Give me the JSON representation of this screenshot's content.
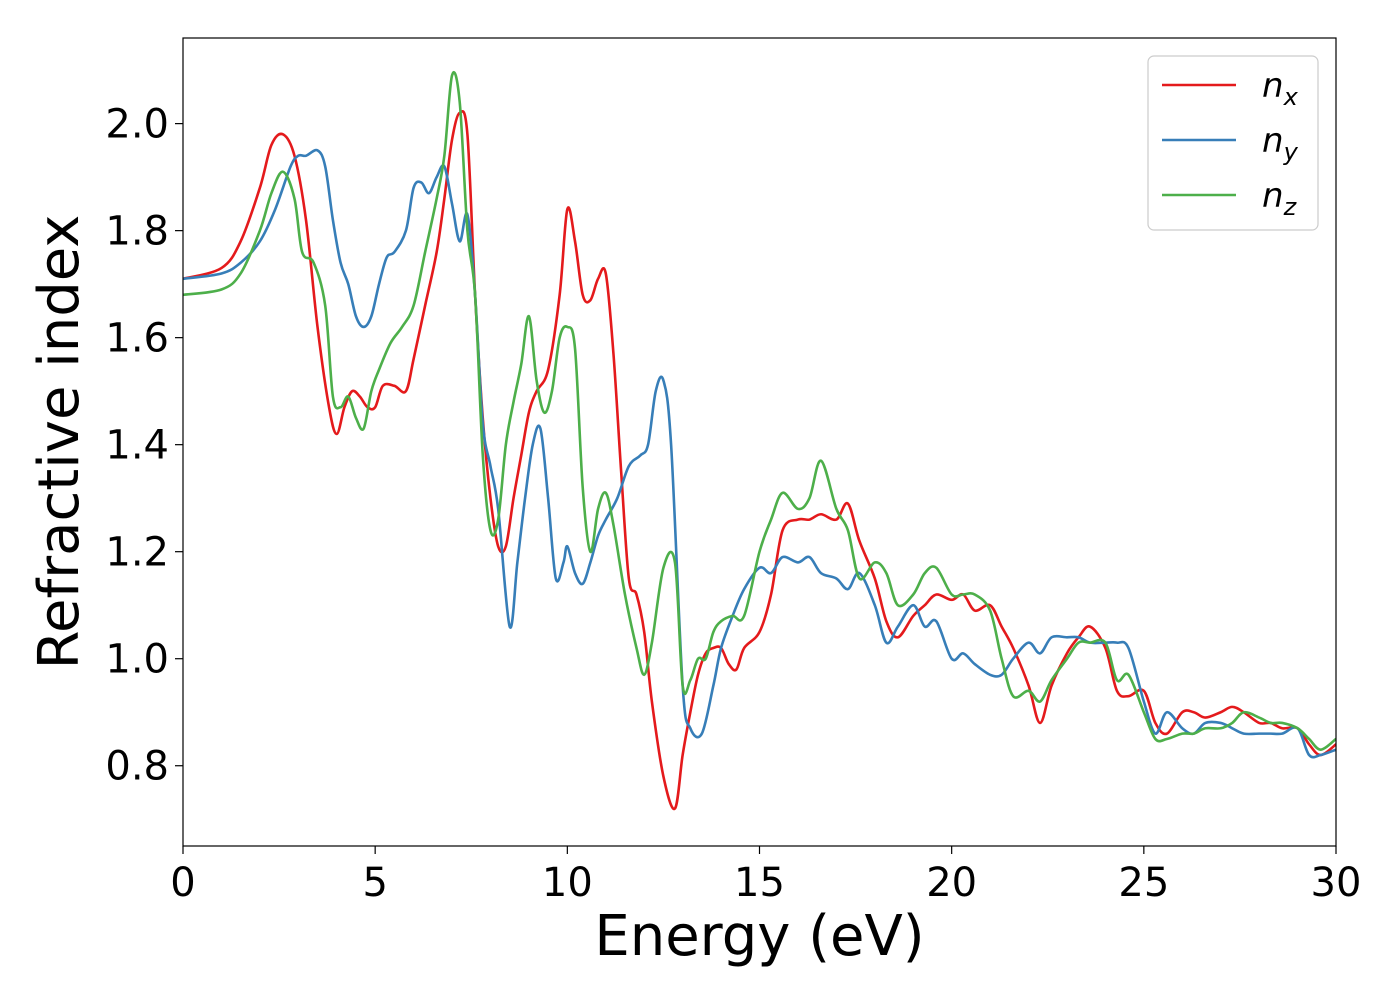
{
  "chart_data": {
    "type": "line",
    "title": "",
    "xlabel": "Energy (eV)",
    "ylabel": "Refractive index",
    "xlim": [
      0,
      30
    ],
    "ylim": [
      0.65,
      2.16
    ],
    "xticks": [
      0,
      5,
      10,
      15,
      20,
      25,
      30
    ],
    "xtick_labels": [
      "0",
      "5",
      "10",
      "15",
      "20",
      "25",
      "30"
    ],
    "yticks": [
      0.8,
      1.0,
      1.2,
      1.4,
      1.6,
      1.8,
      2.0
    ],
    "ytick_labels": [
      "0.8",
      "1.0",
      "1.2",
      "1.4",
      "1.6",
      "1.8",
      "2.0"
    ],
    "grid": false,
    "legend_position": "top-right",
    "series": [
      {
        "name": "n",
        "subscript": "x",
        "color": "#e41a1c",
        "x": [
          0,
          1,
          1.5,
          2,
          2.3,
          2.6,
          2.9,
          3.2,
          3.5,
          3.8,
          4.0,
          4.2,
          4.4,
          4.6,
          4.8,
          5.0,
          5.2,
          5.5,
          5.8,
          6.0,
          6.3,
          6.6,
          6.8,
          7.0,
          7.2,
          7.4,
          7.6,
          7.8,
          8.0,
          8.2,
          8.4,
          8.6,
          8.8,
          9.0,
          9.2,
          9.5,
          9.8,
          10.0,
          10.2,
          10.4,
          10.6,
          10.8,
          11.0,
          11.2,
          11.4,
          11.6,
          11.8,
          12.0,
          12.2,
          12.5,
          12.8,
          13.0,
          13.2,
          13.4,
          13.6,
          13.8,
          14.0,
          14.2,
          14.4,
          14.6,
          15.0,
          15.3,
          15.6,
          16.0,
          16.3,
          16.6,
          17.0,
          17.3,
          17.6,
          18.0,
          18.3,
          18.6,
          19.0,
          19.3,
          19.6,
          20.0,
          20.3,
          20.6,
          21.0,
          21.3,
          21.6,
          22.0,
          22.3,
          22.6,
          23.0,
          23.3,
          23.6,
          24.0,
          24.3,
          24.6,
          25.0,
          25.3,
          25.6,
          26.0,
          26.3,
          26.6,
          27.0,
          27.3,
          27.6,
          28.0,
          28.3,
          28.6,
          29.0,
          29.3,
          29.6,
          30.0
        ],
        "y": [
          1.71,
          1.73,
          1.78,
          1.88,
          1.96,
          1.98,
          1.94,
          1.82,
          1.62,
          1.47,
          1.42,
          1.47,
          1.5,
          1.49,
          1.47,
          1.47,
          1.51,
          1.51,
          1.5,
          1.56,
          1.66,
          1.76,
          1.86,
          1.97,
          2.02,
          1.98,
          1.68,
          1.45,
          1.3,
          1.21,
          1.21,
          1.3,
          1.38,
          1.46,
          1.5,
          1.54,
          1.68,
          1.84,
          1.78,
          1.68,
          1.67,
          1.71,
          1.72,
          1.57,
          1.35,
          1.15,
          1.12,
          1.05,
          0.92,
          0.78,
          0.72,
          0.82,
          0.9,
          0.97,
          1.01,
          1.02,
          1.02,
          0.99,
          0.98,
          1.02,
          1.05,
          1.12,
          1.24,
          1.26,
          1.26,
          1.27,
          1.26,
          1.29,
          1.22,
          1.15,
          1.07,
          1.04,
          1.08,
          1.1,
          1.12,
          1.11,
          1.12,
          1.09,
          1.1,
          1.06,
          1.02,
          0.95,
          0.88,
          0.95,
          1.01,
          1.04,
          1.06,
          1.02,
          0.94,
          0.93,
          0.94,
          0.88,
          0.86,
          0.9,
          0.9,
          0.89,
          0.9,
          0.91,
          0.9,
          0.88,
          0.88,
          0.87,
          0.87,
          0.84,
          0.82,
          0.84
        ]
      },
      {
        "name": "n",
        "subscript": "y",
        "color": "#377eb8",
        "x": [
          0,
          1,
          1.5,
          2,
          2.4,
          2.8,
          3.0,
          3.2,
          3.5,
          3.7,
          3.9,
          4.1,
          4.3,
          4.5,
          4.7,
          4.9,
          5.1,
          5.3,
          5.5,
          5.8,
          6.0,
          6.2,
          6.4,
          6.6,
          6.8,
          7.0,
          7.2,
          7.4,
          7.6,
          7.8,
          8.0,
          8.2,
          8.5,
          8.7,
          8.9,
          9.1,
          9.3,
          9.5,
          9.7,
          9.9,
          10.0,
          10.2,
          10.4,
          10.6,
          10.8,
          11.0,
          11.3,
          11.6,
          11.9,
          12.1,
          12.3,
          12.5,
          12.7,
          13.0,
          13.2,
          13.5,
          13.8,
          14.0,
          14.3,
          14.6,
          15.0,
          15.3,
          15.6,
          16.0,
          16.3,
          16.6,
          17.0,
          17.3,
          17.6,
          18.0,
          18.3,
          18.6,
          19.0,
          19.3,
          19.6,
          20.0,
          20.3,
          20.6,
          21.0,
          21.3,
          21.6,
          22.0,
          22.3,
          22.6,
          23.0,
          23.3,
          23.6,
          24.0,
          24.3,
          24.6,
          25.0,
          25.3,
          25.6,
          26.0,
          26.3,
          26.6,
          27.0,
          27.3,
          27.6,
          28.0,
          28.3,
          28.6,
          29.0,
          29.3,
          29.6,
          30.0
        ],
        "y": [
          1.71,
          1.72,
          1.74,
          1.78,
          1.84,
          1.92,
          1.94,
          1.94,
          1.95,
          1.92,
          1.82,
          1.74,
          1.7,
          1.64,
          1.62,
          1.64,
          1.7,
          1.75,
          1.76,
          1.8,
          1.88,
          1.89,
          1.87,
          1.9,
          1.92,
          1.85,
          1.78,
          1.83,
          1.68,
          1.44,
          1.36,
          1.28,
          1.06,
          1.18,
          1.3,
          1.4,
          1.43,
          1.3,
          1.15,
          1.18,
          1.21,
          1.16,
          1.14,
          1.18,
          1.23,
          1.26,
          1.3,
          1.36,
          1.38,
          1.4,
          1.5,
          1.52,
          1.4,
          0.95,
          0.87,
          0.86,
          0.95,
          1.02,
          1.08,
          1.13,
          1.17,
          1.16,
          1.19,
          1.18,
          1.19,
          1.16,
          1.15,
          1.13,
          1.16,
          1.1,
          1.03,
          1.06,
          1.1,
          1.06,
          1.07,
          1.0,
          1.01,
          0.99,
          0.97,
          0.97,
          1.0,
          1.03,
          1.01,
          1.04,
          1.04,
          1.04,
          1.03,
          1.03,
          1.03,
          1.02,
          0.92,
          0.86,
          0.9,
          0.87,
          0.86,
          0.88,
          0.88,
          0.87,
          0.86,
          0.86,
          0.86,
          0.86,
          0.87,
          0.82,
          0.82,
          0.83
        ]
      },
      {
        "name": "n",
        "subscript": "z",
        "color": "#4daf4a",
        "x": [
          0,
          1,
          1.5,
          2,
          2.3,
          2.6,
          2.9,
          3.1,
          3.4,
          3.7,
          3.9,
          4.1,
          4.3,
          4.5,
          4.7,
          4.9,
          5.1,
          5.4,
          5.7,
          6.0,
          6.3,
          6.6,
          6.8,
          7.0,
          7.2,
          7.4,
          7.6,
          7.8,
          8.0,
          8.2,
          8.4,
          8.6,
          8.8,
          9.0,
          9.2,
          9.4,
          9.6,
          9.8,
          10.0,
          10.2,
          10.4,
          10.6,
          10.8,
          11.0,
          11.2,
          11.5,
          11.8,
          12.0,
          12.2,
          12.5,
          12.8,
          13.0,
          13.2,
          13.4,
          13.6,
          13.8,
          14.0,
          14.3,
          14.6,
          15.0,
          15.3,
          15.6,
          16.0,
          16.3,
          16.6,
          17.0,
          17.3,
          17.6,
          18.0,
          18.3,
          18.6,
          19.0,
          19.3,
          19.6,
          20.0,
          20.3,
          20.6,
          21.0,
          21.3,
          21.6,
          22.0,
          22.3,
          22.6,
          23.0,
          23.3,
          23.6,
          24.0,
          24.3,
          24.6,
          25.0,
          25.3,
          25.6,
          26.0,
          26.3,
          26.6,
          27.0,
          27.3,
          27.6,
          28.0,
          28.3,
          28.6,
          29.0,
          29.3,
          29.6,
          30.0
        ],
        "y": [
          1.68,
          1.69,
          1.72,
          1.8,
          1.87,
          1.91,
          1.86,
          1.76,
          1.74,
          1.66,
          1.49,
          1.47,
          1.49,
          1.45,
          1.43,
          1.5,
          1.54,
          1.59,
          1.62,
          1.66,
          1.76,
          1.86,
          1.94,
          2.09,
          2.04,
          1.8,
          1.68,
          1.38,
          1.24,
          1.26,
          1.4,
          1.48,
          1.55,
          1.64,
          1.52,
          1.46,
          1.5,
          1.6,
          1.62,
          1.58,
          1.32,
          1.2,
          1.28,
          1.31,
          1.25,
          1.12,
          1.02,
          0.97,
          1.03,
          1.17,
          1.18,
          0.95,
          0.96,
          1.0,
          1.0,
          1.05,
          1.07,
          1.08,
          1.08,
          1.2,
          1.26,
          1.31,
          1.28,
          1.3,
          1.37,
          1.28,
          1.24,
          1.15,
          1.18,
          1.16,
          1.1,
          1.12,
          1.16,
          1.17,
          1.12,
          1.12,
          1.12,
          1.09,
          1.0,
          0.93,
          0.94,
          0.92,
          0.96,
          1.0,
          1.03,
          1.03,
          1.03,
          0.96,
          0.97,
          0.9,
          0.85,
          0.85,
          0.86,
          0.86,
          0.87,
          0.87,
          0.88,
          0.9,
          0.89,
          0.88,
          0.88,
          0.87,
          0.85,
          0.83,
          0.85
        ]
      }
    ]
  }
}
